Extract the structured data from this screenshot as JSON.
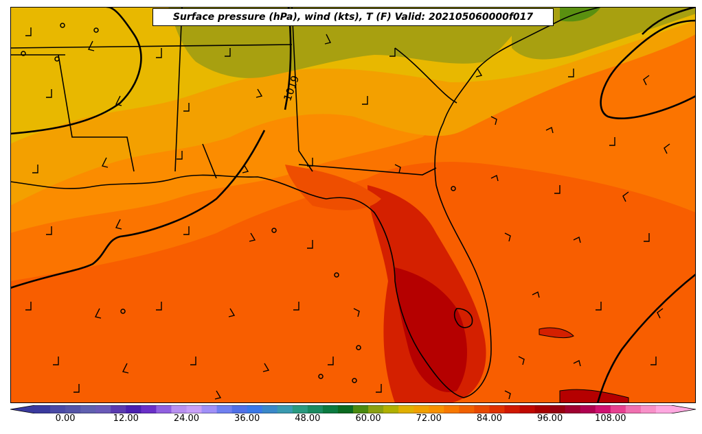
{
  "title": "Surface pressure (hPa), wind (kts), T (F) Valid: 202105060000f017",
  "isobar_label": "1019",
  "colorbar": {
    "min": -6,
    "max": 120,
    "step": 3,
    "tick_labels": [
      "0.00",
      "12.00",
      "24.00",
      "36.00",
      "48.00",
      "60.00",
      "72.00",
      "84.00",
      "96.00",
      "108.00"
    ],
    "tick_values": [
      0,
      12,
      24,
      36,
      48,
      60,
      72,
      84,
      96,
      108
    ],
    "colors": [
      "#3a3a9e",
      "#4a4aa6",
      "#5454a8",
      "#6060b0",
      "#6a5ab8",
      "#5a3ab0",
      "#4a20b0",
      "#6a30c8",
      "#9060e0",
      "#b890f0",
      "#c8a0f8",
      "#a090f8",
      "#7080f0",
      "#5070e8",
      "#3a78e8",
      "#3a88c8",
      "#3a9ab0",
      "#2a9a80",
      "#1a8a60",
      "#0a7a40",
      "#0a6a20",
      "#4a8a10",
      "#8aa010",
      "#b0b000",
      "#e0b000",
      "#f0a000",
      "#f89000",
      "#f87800",
      "#f06000",
      "#e84800",
      "#e03000",
      "#d01800",
      "#c00800",
      "#a80000",
      "#980010",
      "#a00030",
      "#b00050",
      "#d01070",
      "#e84090",
      "#f070b0",
      "#f890c8",
      "#ffa8e0"
    ]
  },
  "temperature_field_colors": {
    "warm_deep": "#b50000",
    "warm_red": "#d42000",
    "warm_orange_red": "#ee4e00",
    "orange": "#fb6a00",
    "light_orange": "#fb8a00",
    "amber": "#f3a200",
    "yellow": "#e8b800",
    "olive": "#a8a010",
    "green": "#5a9010"
  }
}
